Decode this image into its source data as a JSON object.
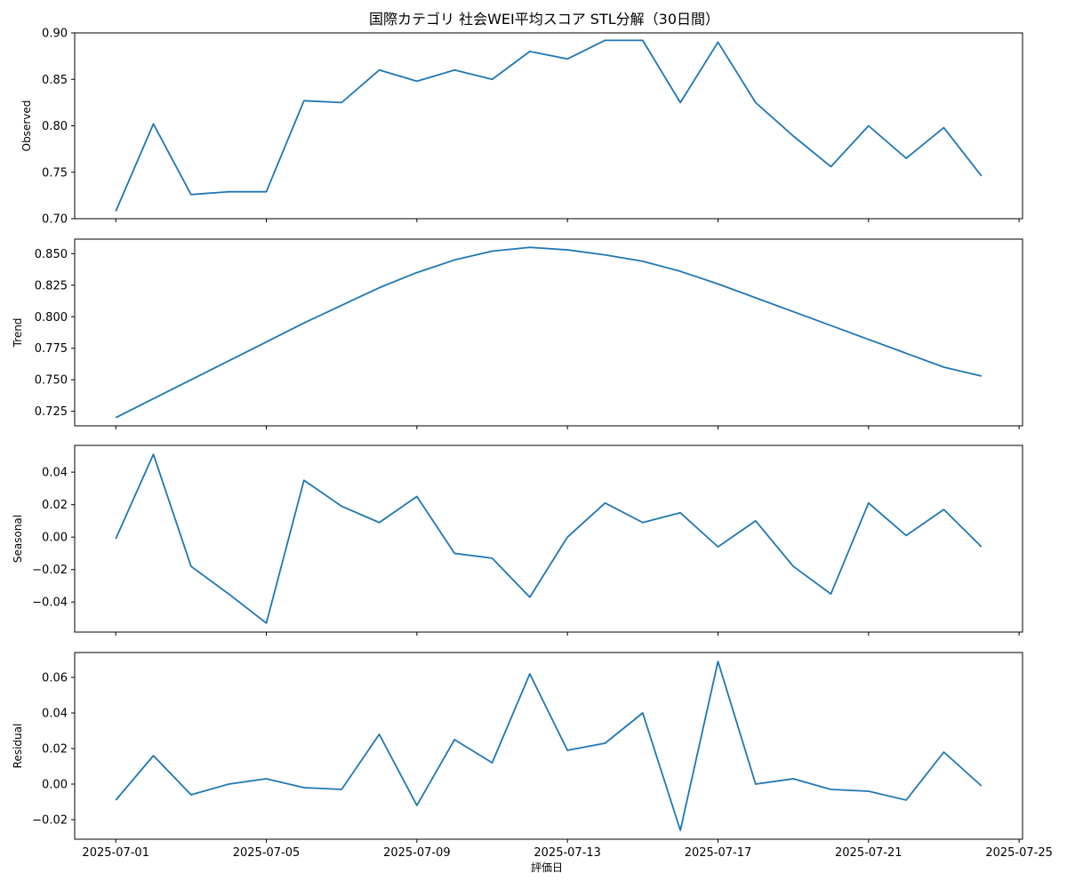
{
  "chart_data": {
    "type": "line",
    "title": "国際カテゴリ 社会WEI平均スコア STL分解（30日間）",
    "xlabel": "評価日",
    "x": [
      "2025-07-01",
      "2025-07-02",
      "2025-07-03",
      "2025-07-04",
      "2025-07-05",
      "2025-07-06",
      "2025-07-07",
      "2025-07-08",
      "2025-07-09",
      "2025-07-10",
      "2025-07-11",
      "2025-07-12",
      "2025-07-13",
      "2025-07-14",
      "2025-07-15",
      "2025-07-16",
      "2025-07-17",
      "2025-07-18",
      "2025-07-19",
      "2025-07-20",
      "2025-07-21",
      "2025-07-22",
      "2025-07-23",
      "2025-07-24"
    ],
    "x_ticks": [
      "2025-07-01",
      "2025-07-05",
      "2025-07-09",
      "2025-07-13",
      "2025-07-17",
      "2025-07-21",
      "2025-07-25"
    ],
    "x_range": [
      "2025-06-29T21:48",
      "2025-07-25T02:12"
    ],
    "line_color": "#1f77b4",
    "panels": [
      {
        "ylabel": "Observed",
        "ylim": [
          0.7,
          0.9
        ],
        "y_ticks": [
          "0.70",
          "0.75",
          "0.80",
          "0.85",
          "0.90"
        ],
        "values": [
          0.708,
          0.802,
          0.726,
          0.729,
          0.729,
          0.827,
          0.825,
          0.86,
          0.848,
          0.86,
          0.85,
          0.88,
          0.872,
          0.892,
          0.892,
          0.825,
          0.89,
          0.825,
          0.789,
          0.756,
          0.8,
          0.765,
          0.798,
          0.746
        ]
      },
      {
        "ylabel": "Trend",
        "ylim": [
          0.7135,
          0.8615
        ],
        "y_ticks": [
          "0.725",
          "0.750",
          "0.775",
          "0.800",
          "0.825",
          "0.850"
        ],
        "values": [
          0.72,
          0.735,
          0.75,
          0.765,
          0.78,
          0.795,
          0.809,
          0.823,
          0.835,
          0.845,
          0.852,
          0.855,
          0.853,
          0.849,
          0.844,
          0.836,
          0.826,
          0.815,
          0.804,
          0.793,
          0.782,
          0.771,
          0.76,
          0.753
        ]
      },
      {
        "ylabel": "Seasonal",
        "ylim": [
          -0.0585,
          0.0565
        ],
        "y_ticks": [
          "−0.04",
          "−0.02",
          "0.00",
          "0.02",
          "0.04"
        ],
        "values": [
          -0.001,
          0.051,
          -0.018,
          -0.035,
          -0.053,
          0.035,
          0.019,
          0.009,
          0.025,
          -0.01,
          -0.013,
          -0.037,
          0.0,
          0.021,
          0.009,
          0.015,
          -0.006,
          0.01,
          -0.018,
          -0.035,
          0.021,
          0.001,
          0.017,
          -0.006
        ]
      },
      {
        "ylabel": "Residual",
        "ylim": [
          -0.031,
          0.074
        ],
        "y_ticks": [
          "−0.02",
          "0.00",
          "0.02",
          "0.04",
          "0.06"
        ],
        "values": [
          -0.009,
          0.016,
          -0.006,
          0.0,
          0.003,
          -0.002,
          -0.003,
          0.028,
          -0.012,
          0.025,
          0.012,
          0.062,
          0.019,
          0.023,
          0.04,
          -0.026,
          0.069,
          0.0,
          0.003,
          -0.003,
          -0.004,
          -0.009,
          0.018,
          -0.001
        ]
      }
    ]
  }
}
